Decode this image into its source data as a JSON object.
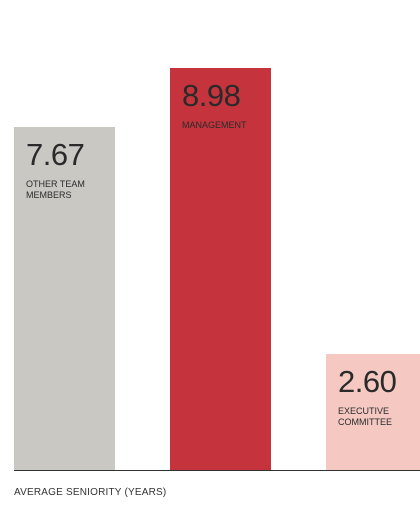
{
  "chart_data": {
    "type": "bar",
    "categories": [
      "OTHER TEAM MEMBERS",
      "MANAGEMENT",
      "EXECUTIVE COMMITTEE"
    ],
    "values": [
      7.67,
      8.98,
      2.6
    ],
    "value_labels": [
      "7.67",
      "8.98",
      "2.60"
    ],
    "colors": [
      "#c9c8c3",
      "#c5343d",
      "#f5c9c2"
    ],
    "x_label": "AVERAGE SENIORITY (YEARS)"
  }
}
